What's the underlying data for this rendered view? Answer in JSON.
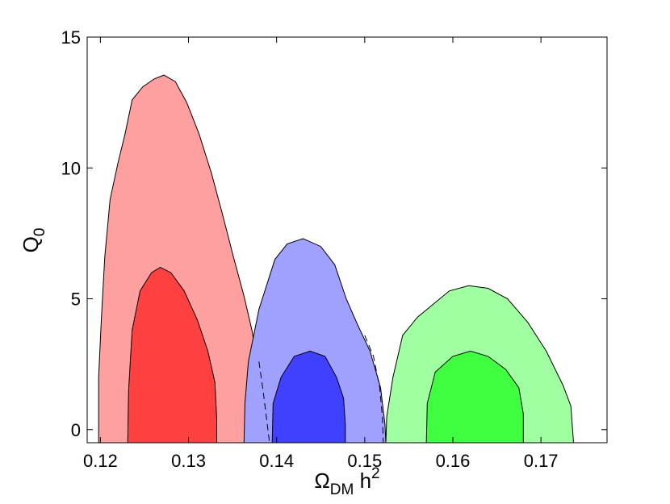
{
  "chart_data": {
    "type": "area",
    "xlim": [
      0.1185,
      0.1775
    ],
    "ylim": [
      -0.5,
      15
    ],
    "x_ticks": [
      0.12,
      0.13,
      0.14,
      0.15,
      0.16,
      0.17
    ],
    "x_tick_labels": [
      "0.12",
      "0.13",
      "0.14",
      "0.15",
      "0.16",
      "0.17"
    ],
    "y_ticks": [
      0,
      5,
      10,
      15
    ],
    "y_tick_labels": [
      "0",
      "5",
      "10",
      "15"
    ],
    "xlabel": {
      "main": "Ω",
      "sub": "DM",
      "mid": " h",
      "sup": "2"
    },
    "ylabel": {
      "main": "Q",
      "sub": "0"
    },
    "grid": false,
    "series": [
      {
        "color_outer": "#ffa0a0",
        "color_inner": "#ff4040",
        "outer": [
          [
            0.1198,
            -0.5
          ],
          [
            0.1198,
            2.0
          ],
          [
            0.1201,
            4.2
          ],
          [
            0.1205,
            6.6
          ],
          [
            0.1211,
            8.8
          ],
          [
            0.122,
            10.2
          ],
          [
            0.1228,
            11.3
          ],
          [
            0.1236,
            12.6
          ],
          [
            0.1248,
            13.1
          ],
          [
            0.1261,
            13.4
          ],
          [
            0.1272,
            13.55
          ],
          [
            0.1285,
            13.3
          ],
          [
            0.1298,
            12.5
          ],
          [
            0.1312,
            11.3
          ],
          [
            0.1326,
            9.8
          ],
          [
            0.1338,
            8.3
          ],
          [
            0.1351,
            6.6
          ],
          [
            0.1363,
            5.1
          ],
          [
            0.1372,
            3.8
          ],
          [
            0.138,
            2.2
          ],
          [
            0.1385,
            0.5
          ],
          [
            0.1388,
            -0.5
          ]
        ],
        "inner": [
          [
            0.1231,
            -0.5
          ],
          [
            0.1232,
            1.5
          ],
          [
            0.1236,
            3.8
          ],
          [
            0.1245,
            5.3
          ],
          [
            0.1258,
            6.0
          ],
          [
            0.1268,
            6.2
          ],
          [
            0.128,
            6.0
          ],
          [
            0.1295,
            5.3
          ],
          [
            0.131,
            4.2
          ],
          [
            0.1322,
            3.0
          ],
          [
            0.133,
            1.8
          ],
          [
            0.1332,
            0.4
          ],
          [
            0.1332,
            -0.5
          ]
        ],
        "dashed": [
          [
            0.138,
            2.6
          ],
          [
            0.1385,
            1.4
          ],
          [
            0.1389,
            0.3
          ],
          [
            0.1392,
            -0.5
          ]
        ]
      },
      {
        "color_outer": "#a0a0ff",
        "color_inner": "#4040ff",
        "outer": [
          [
            0.1363,
            -0.5
          ],
          [
            0.1364,
            1.0
          ],
          [
            0.1368,
            2.6
          ],
          [
            0.138,
            4.6
          ],
          [
            0.1398,
            6.5
          ],
          [
            0.1412,
            7.1
          ],
          [
            0.143,
            7.3
          ],
          [
            0.145,
            7.0
          ],
          [
            0.1466,
            6.3
          ],
          [
            0.1479,
            5.0
          ],
          [
            0.1492,
            4.0
          ],
          [
            0.1506,
            3.0
          ],
          [
            0.1518,
            1.6
          ],
          [
            0.1523,
            0.2
          ],
          [
            0.1524,
            -0.5
          ]
        ],
        "inner": [
          [
            0.1395,
            -0.5
          ],
          [
            0.1396,
            1.0
          ],
          [
            0.1405,
            2.0
          ],
          [
            0.142,
            2.8
          ],
          [
            0.1438,
            3.0
          ],
          [
            0.1455,
            2.8
          ],
          [
            0.1468,
            2.0
          ],
          [
            0.1476,
            1.2
          ],
          [
            0.1478,
            0.2
          ],
          [
            0.1478,
            -0.5
          ]
        ],
        "dashed": [
          [
            0.15,
            3.6
          ],
          [
            0.151,
            2.8
          ],
          [
            0.1517,
            1.6
          ],
          [
            0.152,
            0.5
          ],
          [
            0.1521,
            -0.5
          ]
        ]
      },
      {
        "color_outer": "#a0ffa0",
        "color_inner": "#40ff40",
        "outer": [
          [
            0.1524,
            -0.5
          ],
          [
            0.1525,
            0.5
          ],
          [
            0.1532,
            2.0
          ],
          [
            0.1543,
            3.6
          ],
          [
            0.156,
            4.3
          ],
          [
            0.1578,
            4.8
          ],
          [
            0.1596,
            5.3
          ],
          [
            0.1618,
            5.5
          ],
          [
            0.164,
            5.4
          ],
          [
            0.1662,
            5.0
          ],
          [
            0.1685,
            4.1
          ],
          [
            0.1706,
            3.0
          ],
          [
            0.1725,
            1.7
          ],
          [
            0.1734,
            0.9
          ],
          [
            0.1737,
            -0.5
          ]
        ],
        "inner": [
          [
            0.157,
            -0.5
          ],
          [
            0.1571,
            1.0
          ],
          [
            0.158,
            2.2
          ],
          [
            0.16,
            2.8
          ],
          [
            0.162,
            3.0
          ],
          [
            0.164,
            2.8
          ],
          [
            0.166,
            2.3
          ],
          [
            0.1675,
            1.6
          ],
          [
            0.168,
            0.6
          ],
          [
            0.168,
            -0.5
          ]
        ],
        "dashed": []
      }
    ]
  }
}
